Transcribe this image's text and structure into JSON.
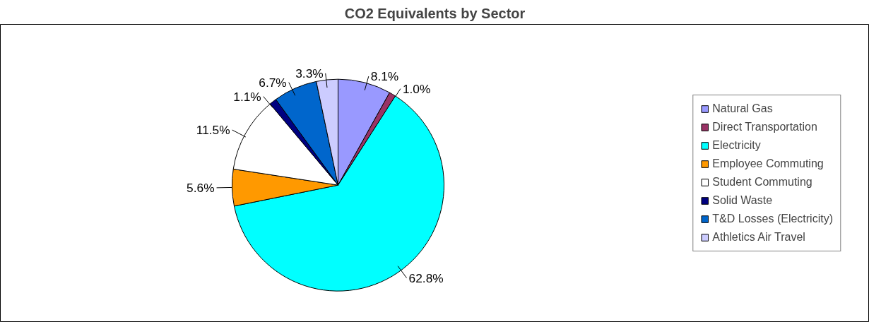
{
  "chart_data": {
    "type": "pie",
    "title": "CO2 Equivalents by Sector",
    "categories": [
      "Natural Gas",
      "Direct Transportation",
      "Electricity",
      "Employee Commuting",
      "Student Commuting",
      "Solid Waste",
      "T&D Losses (Electricity)",
      "Athletics Air Travel"
    ],
    "values": [
      8.1,
      1.0,
      62.8,
      5.6,
      11.5,
      1.1,
      6.7,
      3.3
    ],
    "value_labels": [
      "8.1%",
      "1.0%",
      "62.8%",
      "5.6%",
      "11.5%",
      "1.1%",
      "6.7%",
      "3.3%"
    ],
    "colors": [
      "#9999ff",
      "#993366",
      "#00ffff",
      "#ff9900",
      "#ffffff",
      "#000080",
      "#0066cc",
      "#ccccff"
    ],
    "legend": "right"
  }
}
